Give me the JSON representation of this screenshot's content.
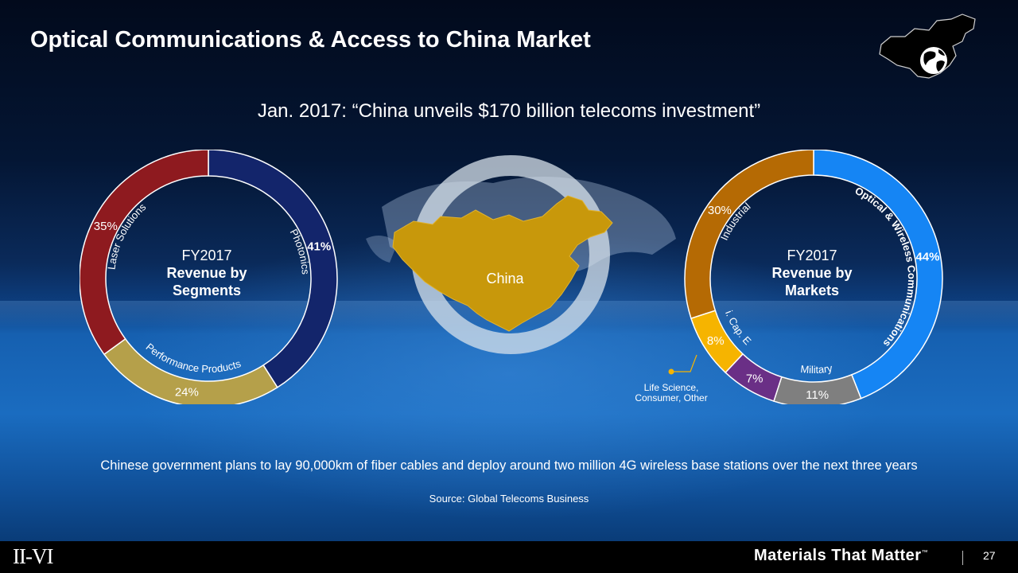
{
  "title": "Optical Communications & Access to China Market",
  "subtitle": "Jan. 2017: “China unveils $170 billion telecoms investment”",
  "map_label": "China",
  "bottom_note": "Chinese government plans to lay 90,000km of fiber cables and deploy around two million 4G wireless base stations over the next three years",
  "source": "Source: Global Telecoms Business",
  "footer": {
    "logo": "II-VI",
    "tagline_main": "Materials That Matter",
    "tagline_tm": "™",
    "page_number": "27"
  },
  "icons": [
    "china-map-icon",
    "globe-icon"
  ],
  "chart_data": [
    {
      "type": "pie",
      "variant": "donut",
      "center_line1": "FY2017",
      "center_line2": "Revenue by",
      "center_line3": "Segments",
      "slices": [
        {
          "label": "Photonics",
          "value": 41,
          "value_label": "41%",
          "color": "#13256b"
        },
        {
          "label": "Performance Products",
          "value": 24,
          "value_label": "24%",
          "color": "#b5a04a"
        },
        {
          "label": "Laser Solutions",
          "value": 35,
          "value_label": "35%",
          "color": "#8e1a1f"
        }
      ]
    },
    {
      "type": "pie",
      "variant": "donut",
      "center_line1": "FY2017",
      "center_line2": "Revenue by",
      "center_line3": "Markets",
      "slices": [
        {
          "label": "Optical & Wireless Communications",
          "value": 44,
          "value_label": "44%",
          "color": "#1585f4"
        },
        {
          "label": "Military",
          "value": 11,
          "value_label": "11%",
          "color": "#7f7f7f"
        },
        {
          "label": "Life Science, Consumer, Other",
          "value": 7,
          "value_label": "7%",
          "color": "#6a2f86"
        },
        {
          "label": "Semi. Cap. Equip",
          "value": 8,
          "value_label": "8%",
          "color": "#f6b400"
        },
        {
          "label": "Industrial",
          "value": 30,
          "value_label": "30%",
          "color": "#b56a04"
        }
      ],
      "callout": "Life Science, Consumer, Other"
    }
  ]
}
